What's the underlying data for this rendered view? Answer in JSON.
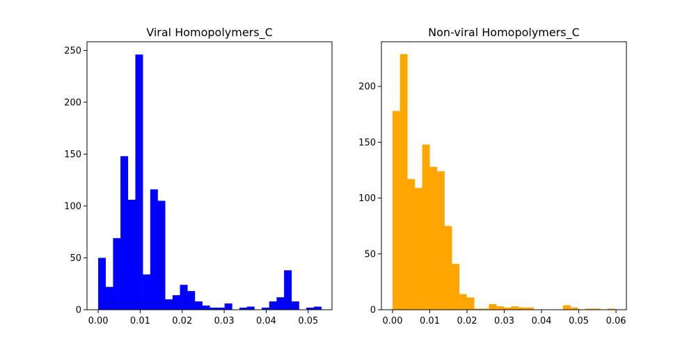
{
  "chart_data": [
    {
      "type": "bar",
      "histogram": true,
      "title": "Viral Homopolymers_C",
      "color": "#0000ff",
      "xlim": [
        -0.00266,
        0.05566
      ],
      "ylim": [
        0,
        258.3
      ],
      "xticks": [
        0.0,
        0.01,
        0.02,
        0.03,
        0.04,
        0.05
      ],
      "xtick_labels": [
        "0.00",
        "0.01",
        "0.02",
        "0.03",
        "0.04",
        "0.05"
      ],
      "yticks": [
        0,
        50,
        100,
        150,
        200,
        250
      ],
      "ytick_labels": [
        "0",
        "50",
        "100",
        "150",
        "200",
        "250"
      ],
      "bin_start": 0.0,
      "bin_width": 0.00177,
      "values": [
        50,
        22,
        69,
        148,
        106,
        246,
        34,
        116,
        105,
        10,
        14,
        24,
        18,
        8,
        4,
        2,
        2,
        6,
        0,
        2,
        3,
        0,
        2,
        8,
        12,
        38,
        8,
        0,
        2,
        3
      ]
    },
    {
      "type": "bar",
      "histogram": true,
      "title": "Non-viral Homopolymers_C",
      "color": "#ffa500",
      "xlim": [
        -0.00299,
        0.06279
      ],
      "ylim": [
        0,
        240
      ],
      "xticks": [
        0.0,
        0.01,
        0.02,
        0.03,
        0.04,
        0.05,
        0.06
      ],
      "xtick_labels": [
        "0.00",
        "0.01",
        "0.02",
        "0.03",
        "0.04",
        "0.05",
        "0.06"
      ],
      "yticks": [
        0,
        50,
        100,
        150,
        200
      ],
      "ytick_labels": [
        "0",
        "50",
        "100",
        "150",
        "200"
      ],
      "bin_start": 0.0,
      "bin_width": 0.00199,
      "values": [
        178,
        229,
        117,
        109,
        148,
        128,
        124,
        75,
        41,
        14,
        11,
        1,
        1,
        5,
        3,
        2,
        3,
        2,
        2,
        0,
        0,
        0,
        0,
        4,
        2,
        0,
        1,
        1,
        0,
        1
      ]
    }
  ]
}
